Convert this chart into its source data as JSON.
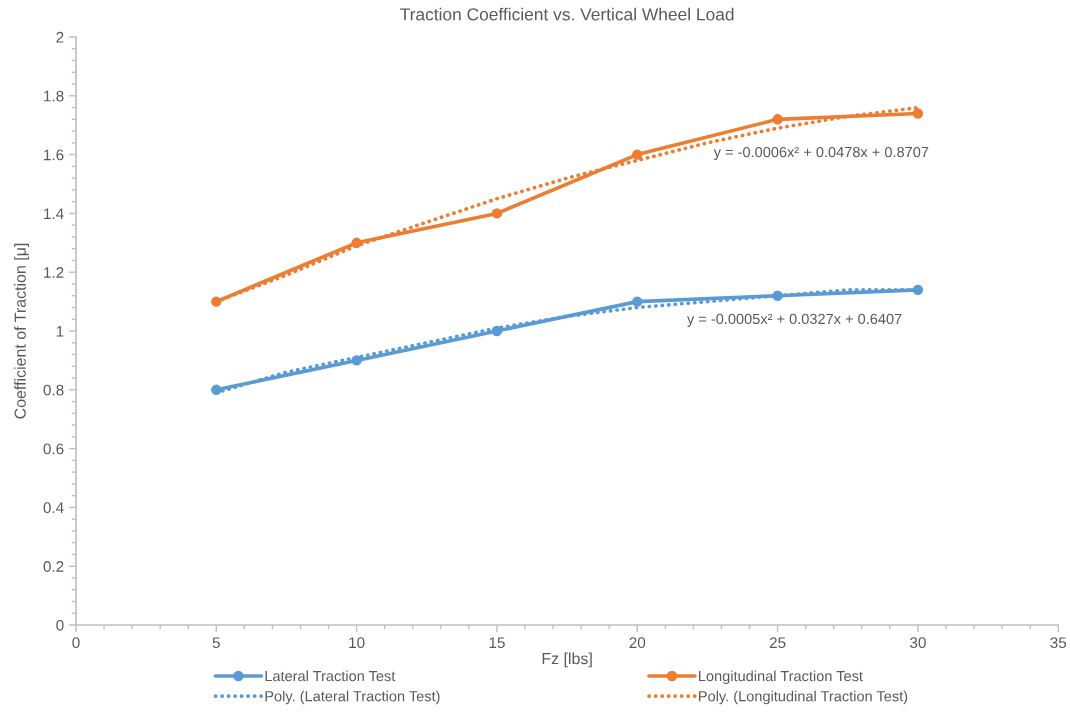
{
  "chart_data": {
    "type": "line",
    "title": "Traction Coefficient vs. Vertical Wheel Load",
    "xlabel": "Fz [lbs]",
    "ylabel": "Coefficient of Traction [μ]",
    "x": [
      5,
      10,
      15,
      20,
      25,
      30
    ],
    "xlim": [
      0,
      35
    ],
    "xticks": [
      0,
      5,
      10,
      15,
      20,
      25,
      30,
      35
    ],
    "ylim": [
      0,
      2
    ],
    "yticks": [
      0,
      0.2,
      0.4,
      0.6,
      0.8,
      1,
      1.2,
      1.4,
      1.6,
      1.8,
      2
    ],
    "grid": false,
    "legend": "bottom",
    "marker": "circle",
    "line_style": "solid",
    "series": [
      {
        "name": "Lateral Traction Test",
        "color": "#5b9bd5",
        "values": [
          0.8,
          0.9,
          1.0,
          1.1,
          1.12,
          1.14
        ]
      },
      {
        "name": "Longitudinal Traction Test",
        "color": "#ed7d31",
        "values": [
          1.1,
          1.3,
          1.4,
          1.6,
          1.72,
          1.74
        ]
      },
      {
        "name": "Poly. (Lateral Traction Test)",
        "color": "#5b9bd5",
        "marker": "none",
        "line_style": "dotted",
        "x": [
          5,
          7.5,
          10,
          12.5,
          15,
          17.5,
          20,
          22.5,
          25,
          27.5,
          30
        ],
        "values": [
          0.79,
          0.86,
          0.91,
          0.96,
          1.01,
          1.05,
          1.08,
          1.1,
          1.12,
          1.14,
          1.14
        ]
      },
      {
        "name": "Poly. (Longitudinal Traction Test)",
        "color": "#ed7d31",
        "marker": "none",
        "line_style": "dotted",
        "x": [
          5,
          7.5,
          10,
          12.5,
          15,
          17.5,
          20,
          22.5,
          25,
          27.5,
          30
        ],
        "values": [
          1.1,
          1.19,
          1.29,
          1.37,
          1.45,
          1.52,
          1.58,
          1.64,
          1.69,
          1.73,
          1.76
        ]
      }
    ],
    "annotations": [
      "y = -0.0006x² + 0.0478x + 0.8707",
      "y = -0.0005x² + 0.0327x + 0.6407"
    ]
  }
}
